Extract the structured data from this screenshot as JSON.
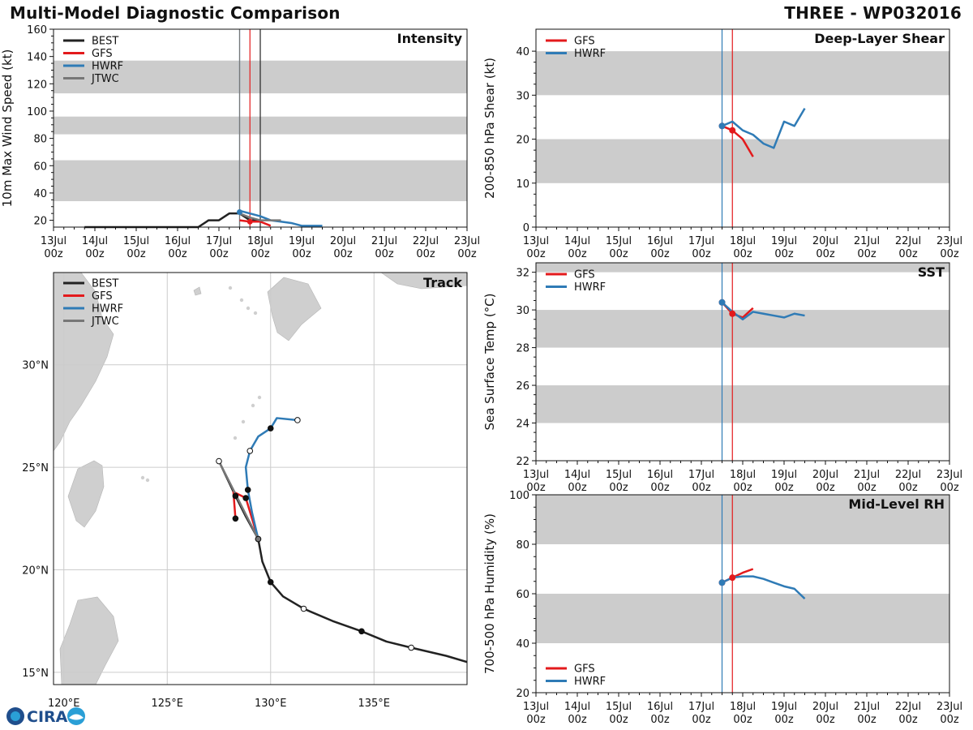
{
  "header": {
    "title": "Multi-Model Diagnostic Comparison",
    "storm": "THREE - WP032016"
  },
  "logo": {
    "text": "CIRA",
    "colors": {
      "primary": "#1f4e8c",
      "accent": "#2a9fd6"
    }
  },
  "colors": {
    "BEST": "#222222",
    "GFS": "#e31a1c",
    "HWRF": "#2f7bb6",
    "JTWC": "#777777",
    "band": "#cccccc",
    "grid": "#cccccc",
    "land": "#cfcfcf"
  },
  "time_axis": {
    "ticks": [
      "13Jul\n00z",
      "14Jul\n00z",
      "15Jul\n00z",
      "16Jul\n00z",
      "17Jul\n00z",
      "18Jul\n00z",
      "19Jul\n00z",
      "20Jul\n00z",
      "21Jul\n00z",
      "22Jul\n00z",
      "23Jul\n00z"
    ],
    "range_days": [
      0,
      10
    ]
  },
  "chart_data": [
    {
      "id": "intensity",
      "type": "line",
      "title": "Intensity",
      "ylabel": "10m Max Wind Speed (kt)",
      "ylim": [
        15,
        160
      ],
      "yticks": [
        20,
        40,
        60,
        80,
        100,
        120,
        140,
        160
      ],
      "bands": [
        [
          34,
          64
        ],
        [
          83,
          96
        ],
        [
          113,
          137
        ]
      ],
      "legend": [
        "BEST",
        "GFS",
        "HWRF",
        "JTWC"
      ],
      "vlines": [
        {
          "x": 4.5,
          "color": "#2f7bb6"
        },
        {
          "x": 4.5,
          "color": "#777777"
        },
        {
          "x": 4.75,
          "color": "#e31a1c"
        },
        {
          "x": 5.0,
          "color": "#222222"
        }
      ],
      "series": [
        {
          "name": "BEST",
          "x": [
            0.75,
            1,
            2,
            3,
            3.5,
            3.75,
            4,
            4.25,
            4.5,
            4.75,
            5
          ],
          "y": [
            15,
            15,
            15,
            15,
            15,
            20,
            20,
            25,
            25,
            20,
            20
          ]
        },
        {
          "name": "GFS",
          "x": [
            4.5,
            4.75,
            5,
            5.25
          ],
          "y": [
            20,
            19,
            19,
            16
          ]
        },
        {
          "name": "HWRF",
          "x": [
            4.5,
            4.75,
            5,
            5.25,
            5.5,
            5.75,
            6,
            6.25,
            6.5
          ],
          "y": [
            27,
            25,
            23,
            20,
            19,
            18,
            16,
            16,
            16
          ]
        },
        {
          "name": "JTWC",
          "x": [
            4.5,
            4.75,
            5,
            5.25,
            5.5
          ],
          "y": [
            25,
            22,
            20,
            20,
            20
          ]
        }
      ]
    },
    {
      "id": "shear",
      "type": "line",
      "title": "Deep-Layer Shear",
      "ylabel": "200-850 hPa Shear (kt)",
      "ylim": [
        0,
        45
      ],
      "yticks": [
        0,
        10,
        20,
        30,
        40
      ],
      "bands": [
        [
          10,
          20
        ],
        [
          30,
          40
        ]
      ],
      "legend": [
        "GFS",
        "HWRF"
      ],
      "vlines": [
        {
          "x": 4.5,
          "color": "#2f7bb6"
        },
        {
          "x": 4.75,
          "color": "#e31a1c"
        }
      ],
      "series": [
        {
          "name": "GFS",
          "x": [
            4.5,
            4.75,
            5,
            5.25
          ],
          "y": [
            23,
            22,
            20,
            16
          ]
        },
        {
          "name": "HWRF",
          "x": [
            4.5,
            4.75,
            5,
            5.25,
            5.5,
            5.75,
            6,
            6.25,
            6.5
          ],
          "y": [
            23,
            24,
            22,
            21,
            19,
            18,
            24,
            23,
            27
          ]
        }
      ]
    },
    {
      "id": "sst",
      "type": "line",
      "title": "SST",
      "ylabel": "Sea Surface Temp (°C)",
      "ylim": [
        22,
        32.5
      ],
      "yticks": [
        22,
        24,
        26,
        28,
        30,
        32
      ],
      "bands": [
        [
          24,
          26
        ],
        [
          28,
          30
        ],
        [
          32,
          32.5
        ]
      ],
      "legend": [
        "GFS",
        "HWRF"
      ],
      "vlines": [
        {
          "x": 4.5,
          "color": "#2f7bb6"
        },
        {
          "x": 4.75,
          "color": "#e31a1c"
        }
      ],
      "series": [
        {
          "name": "GFS",
          "x": [
            4.5,
            4.75,
            5,
            5.25
          ],
          "y": [
            30.4,
            29.8,
            29.6,
            30.1
          ]
        },
        {
          "name": "HWRF",
          "x": [
            4.5,
            4.75,
            5,
            5.25,
            5.5,
            5.75,
            6,
            6.25,
            6.5
          ],
          "y": [
            30.4,
            29.9,
            29.5,
            29.9,
            29.8,
            29.7,
            29.6,
            29.8,
            29.7
          ]
        }
      ]
    },
    {
      "id": "rh",
      "type": "line",
      "title": "Mid-Level RH",
      "ylabel": "700-500 hPa Humidity (%)",
      "ylim": [
        20,
        100
      ],
      "yticks": [
        20,
        40,
        60,
        80,
        100
      ],
      "bands": [
        [
          40,
          60
        ],
        [
          80,
          100
        ]
      ],
      "legend": [
        "GFS",
        "HWRF"
      ],
      "vlines": [
        {
          "x": 4.5,
          "color": "#2f7bb6"
        },
        {
          "x": 4.75,
          "color": "#e31a1c"
        }
      ],
      "series": [
        {
          "name": "GFS",
          "x": [
            4.5,
            4.75,
            5,
            5.25
          ],
          "y": [
            64.5,
            66.5,
            68.5,
            70
          ]
        },
        {
          "name": "HWRF",
          "x": [
            4.5,
            4.75,
            5,
            5.25,
            5.5,
            5.75,
            6,
            6.25,
            6.5
          ],
          "y": [
            64.5,
            66.5,
            67,
            67,
            66,
            64.5,
            63,
            62,
            58
          ]
        }
      ]
    },
    {
      "id": "track",
      "type": "scatter",
      "title": "Track",
      "xlim": [
        119.5,
        139.5
      ],
      "ylim": [
        14.4,
        34.5
      ],
      "xticks": [
        {
          "v": 120,
          "label": "120°E"
        },
        {
          "v": 125,
          "label": "125°E"
        },
        {
          "v": 130,
          "label": "130°E"
        },
        {
          "v": 135,
          "label": "135°E"
        }
      ],
      "yticks": [
        {
          "v": 15,
          "label": "15°N"
        },
        {
          "v": 20,
          "label": "20°N"
        },
        {
          "v": 25,
          "label": "25°N"
        },
        {
          "v": 30,
          "label": "30°N"
        }
      ],
      "legend": [
        "BEST",
        "GFS",
        "HWRF",
        "JTWC"
      ],
      "series": [
        {
          "name": "BEST",
          "lon": [
            139.5,
            138.5,
            136.8,
            135.6,
            134.4,
            133,
            131.6,
            130.6,
            130,
            129.6,
            129.4,
            128.8,
            128.3,
            127.5
          ],
          "lat": [
            15.5,
            15.8,
            16.2,
            16.5,
            17.0,
            17.5,
            18.1,
            18.7,
            19.4,
            20.4,
            21.5,
            22.6,
            23.6,
            25.3
          ],
          "markers": [
            {
              "i": 2,
              "fill": false
            },
            {
              "i": 4,
              "fill": true
            },
            {
              "i": 6,
              "fill": false
            },
            {
              "i": 8,
              "fill": true
            },
            {
              "i": 10,
              "fill": true
            },
            {
              "i": 12,
              "fill": true
            },
            {
              "i": 13,
              "fill": false
            }
          ]
        },
        {
          "name": "GFS",
          "lon": [
            129.4,
            128.8,
            128.2,
            128.3
          ],
          "lat": [
            21.5,
            23.5,
            23.8,
            22.5
          ],
          "markers": [
            {
              "i": 1,
              "fill": true
            },
            {
              "i": 3,
              "fill": true
            }
          ]
        },
        {
          "name": "HWRF",
          "lon": [
            129.4,
            129.1,
            128.9,
            128.8,
            129,
            129.4,
            130,
            130.3,
            131.3
          ],
          "lat": [
            21.5,
            22.8,
            23.9,
            25.0,
            25.8,
            26.5,
            26.9,
            27.4,
            27.3
          ],
          "markers": [
            {
              "i": 2,
              "fill": true
            },
            {
              "i": 4,
              "fill": false
            },
            {
              "i": 6,
              "fill": true
            },
            {
              "i": 8,
              "fill": false
            }
          ]
        },
        {
          "name": "JTWC",
          "lon": [
            129.4,
            128.5,
            127.5
          ],
          "lat": [
            21.5,
            23.3,
            25.3
          ],
          "markers": [
            {
              "i": 0,
              "fill": true
            }
          ]
        }
      ]
    }
  ]
}
